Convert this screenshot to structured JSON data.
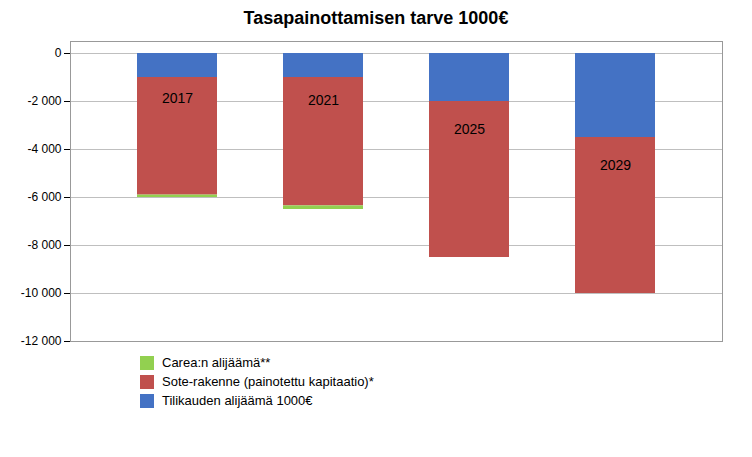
{
  "chart_data": {
    "type": "bar",
    "title": "Tasapainottamisen tarve 1000€",
    "categories": [
      "2017",
      "2021",
      "2025",
      "2029"
    ],
    "series": [
      {
        "name": "Carea:n alijäämä**",
        "color": "#92d050",
        "values": [
          -100,
          -150,
          0,
          0
        ]
      },
      {
        "name": "Sote-rakenne (painotettu kapitaatio)*",
        "color": "#c0504d",
        "values": [
          -4900,
          -5350,
          -6500,
          -6500
        ]
      },
      {
        "name": "Tilikauden alijäämä 1000€",
        "color": "#4472c4",
        "values": [
          -1000,
          -1000,
          -2000,
          -3500
        ]
      }
    ],
    "stacked": true,
    "ylim": [
      -12000,
      500
    ],
    "yticks": [
      0,
      {
        "value": -2000,
        "label": "-2 000"
      },
      {
        "value": -4000,
        "label": "-4 000"
      },
      {
        "value": -6000,
        "label": "-6 000"
      },
      {
        "value": -8000,
        "label": "-8 000"
      },
      {
        "value": -10000,
        "label": "-10 000"
      },
      {
        "value": -12000,
        "label": "-12 000"
      }
    ],
    "grid": true,
    "tick_labels": "y",
    "legend": "bottom"
  }
}
